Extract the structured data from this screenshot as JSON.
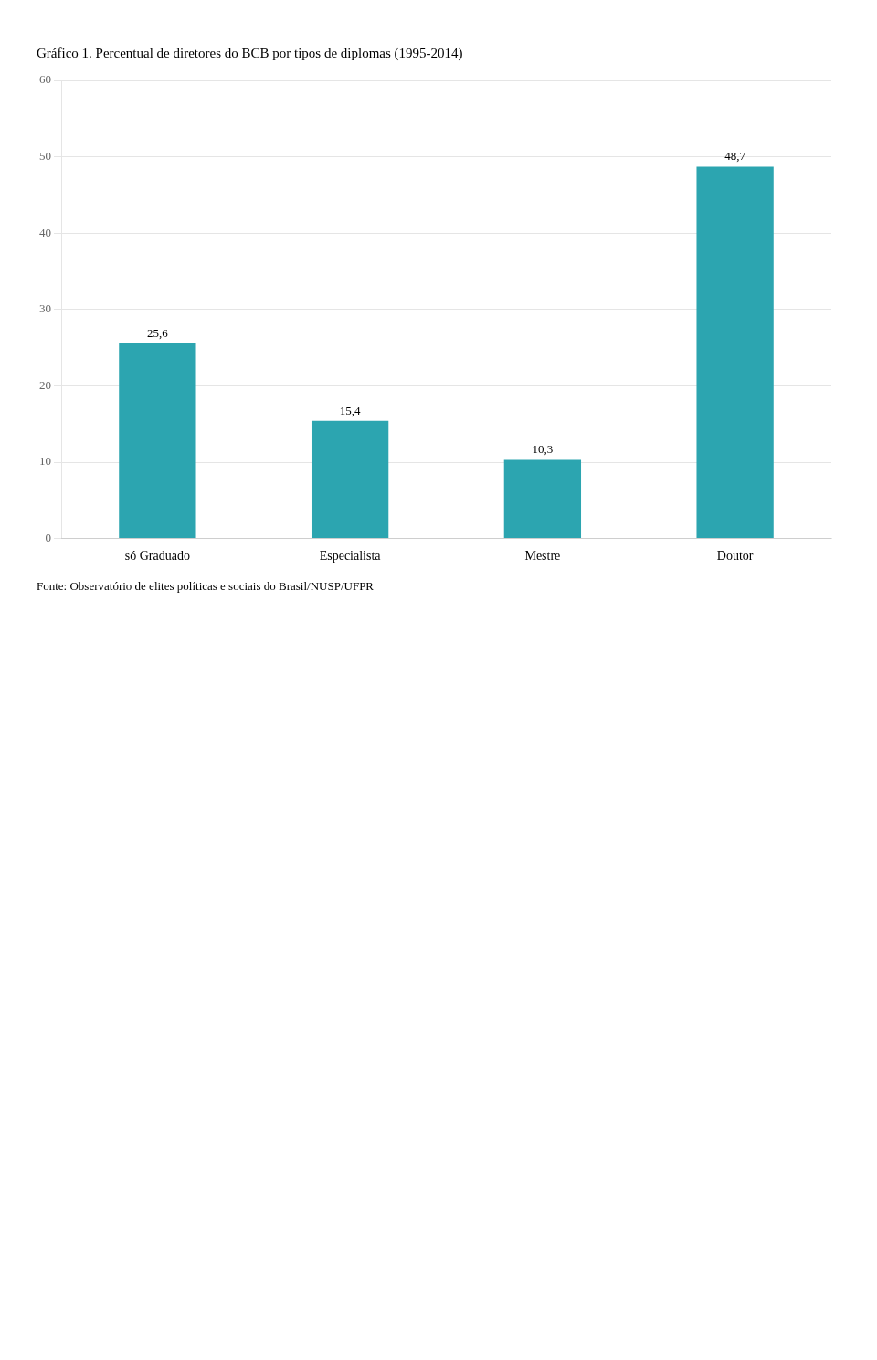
{
  "chart_data": {
    "type": "bar",
    "title": "Gráfico 1. Percentual de diretores do BCB por tipos de diplomas (1995-2014)",
    "annotations": [
      "Fonte: Observatório de elites políticas e sociais do Brasil/NUSP/UFPR"
    ],
    "categories": [
      "só Graduado",
      "Especialista",
      "Mestre",
      "Doutor"
    ],
    "values": [
      25.6,
      15.4,
      10.3,
      48.7
    ],
    "value_labels": [
      "25,6",
      "15,4",
      "10,3",
      "48,7"
    ],
    "data_labels": true,
    "color": "#2CA5B0",
    "ylim": [
      0,
      60
    ],
    "yticks": [
      0,
      10,
      20,
      30,
      40,
      50,
      60
    ],
    "grid": true
  }
}
